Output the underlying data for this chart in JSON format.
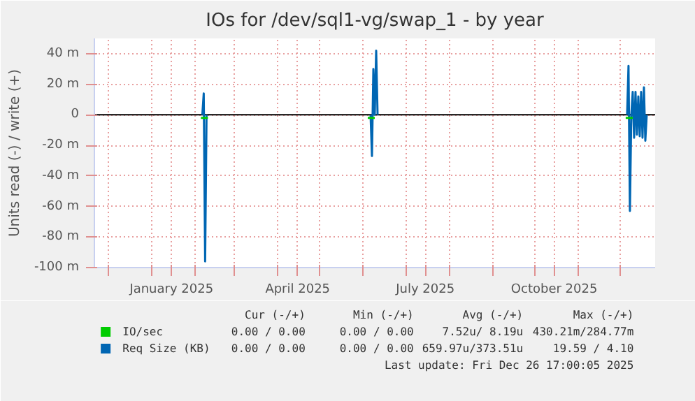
{
  "chart_data": {
    "type": "line",
    "title": "IOs for /dev/sql1-vg/swap_1 - by year",
    "ylabel": "Units read (-) / write (+)",
    "xlim": [
      "2024-11-21",
      "2025-12-26"
    ],
    "xticks": [
      {
        "value": "2024-12-01",
        "label": null
      },
      {
        "value": "2025-01-01",
        "label": null
      },
      {
        "value": "2025-01-15",
        "label": "January 2025"
      },
      {
        "value": "2025-02-01",
        "label": null
      },
      {
        "value": "2025-03-01",
        "label": null
      },
      {
        "value": "2025-04-01",
        "label": null
      },
      {
        "value": "2025-04-15",
        "label": "April 2025"
      },
      {
        "value": "2025-05-01",
        "label": null
      },
      {
        "value": "2025-06-01",
        "label": null
      },
      {
        "value": "2025-07-01",
        "label": null
      },
      {
        "value": "2025-07-15",
        "label": "July 2025"
      },
      {
        "value": "2025-08-01",
        "label": null
      },
      {
        "value": "2025-09-01",
        "label": null
      },
      {
        "value": "2025-10-01",
        "label": null
      },
      {
        "value": "2025-10-15",
        "label": "October 2025"
      },
      {
        "value": "2025-11-01",
        "label": null
      },
      {
        "value": "2025-12-01",
        "label": null
      }
    ],
    "ylim": [
      -100,
      50
    ],
    "yticks": [
      {
        "value": -100,
        "label": "-100 m"
      },
      {
        "value": -80,
        "label": "-80 m"
      },
      {
        "value": -60,
        "label": "-60 m"
      },
      {
        "value": -40,
        "label": "-40 m"
      },
      {
        "value": -20,
        "label": "-20 m"
      },
      {
        "value": 0,
        "label": "0"
      },
      {
        "value": 20,
        "label": "20 m"
      },
      {
        "value": 40,
        "label": "40 m"
      }
    ],
    "grid": true,
    "legend": "bottom",
    "ref_lines": [
      {
        "axis": "y",
        "value": 0,
        "color": "#000000"
      }
    ],
    "series": [
      {
        "name": "IO/sec",
        "color": "#00cc00",
        "x": [
          "2025-02-05",
          "2025-02-10",
          "2025-04-01",
          "2025-06-04",
          "2025-06-09",
          "2025-09-01",
          "2025-12-05",
          "2025-12-10"
        ],
        "values": [
          -2,
          -2,
          null,
          -2,
          -2,
          null,
          -2,
          -2
        ]
      },
      {
        "name": "Req Size (KB)",
        "color": "#0066b3",
        "x": [
          "2025-02-06",
          "2025-02-07",
          "2025-02-08",
          "2025-02-09",
          "2025-04-01",
          "2025-06-06",
          "2025-06-07",
          "2025-06-08",
          "2025-06-09",
          "2025-06-10",
          "2025-06-11",
          "2025-09-01",
          "2025-12-06",
          "2025-12-07",
          "2025-12-08",
          "2025-12-09",
          "2025-12-10",
          "2025-12-11",
          "2025-12-12",
          "2025-12-13",
          "2025-12-14",
          "2025-12-15",
          "2025-12-16",
          "2025-12-17",
          "2025-12-18",
          "2025-12-19",
          "2025-12-20"
        ],
        "values": [
          0,
          14,
          -96,
          0,
          null,
          0,
          -27,
          30,
          0,
          42,
          0,
          null,
          0,
          32,
          -63,
          0,
          15,
          -15,
          15,
          -13,
          12,
          -14,
          15,
          -15,
          18,
          -17,
          0
        ]
      }
    ],
    "annotations": [
      "Cur (-/+)",
      "Min (-/+)",
      "Avg (-/+)",
      "Max (-/+)",
      "0.00 / 0.00",
      "0.00 / 0.00",
      "7.52u/ 8.19u",
      "430.21m/284.77m",
      "0.00 / 0.00",
      "0.00 / 0.00",
      "659.97u/373.51u",
      "19.59 / 4.10",
      "Last update: Fri Dec 26 17:00:05 2025"
    ]
  }
}
